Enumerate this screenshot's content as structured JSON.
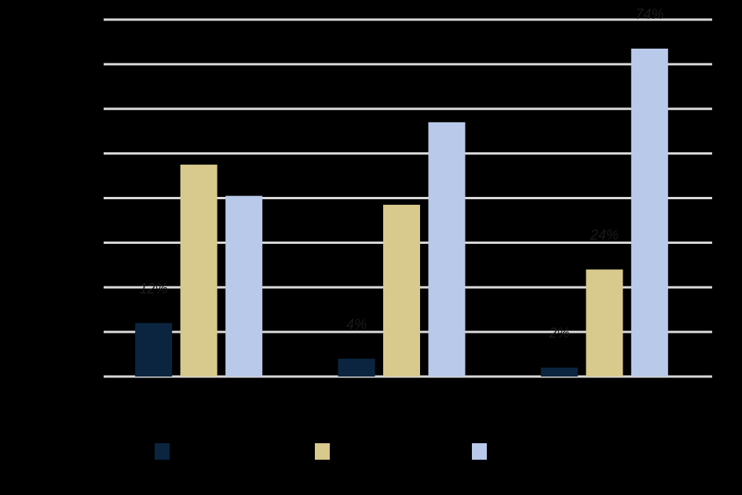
{
  "chart_data": {
    "type": "bar",
    "title": "",
    "xlabel": "",
    "ylabel": "",
    "ylim": [
      0,
      80
    ],
    "grid": true,
    "legend_position": "bottom",
    "categories": [
      "",
      "",
      ""
    ],
    "series": [
      {
        "name": "",
        "color": "#0b2540",
        "values": [
          12,
          4,
          2
        ],
        "labels": [
          "12%",
          "4%",
          "2%"
        ]
      },
      {
        "name": "",
        "color": "#d8c98c",
        "values": [
          47.5,
          38.5,
          24
        ],
        "labels": [
          "",
          "",
          "24%"
        ]
      },
      {
        "name": "",
        "color": "#b9c9ea",
        "values": [
          40.5,
          57,
          73.5
        ],
        "labels": [
          "",
          "",
          "74%"
        ]
      }
    ]
  }
}
